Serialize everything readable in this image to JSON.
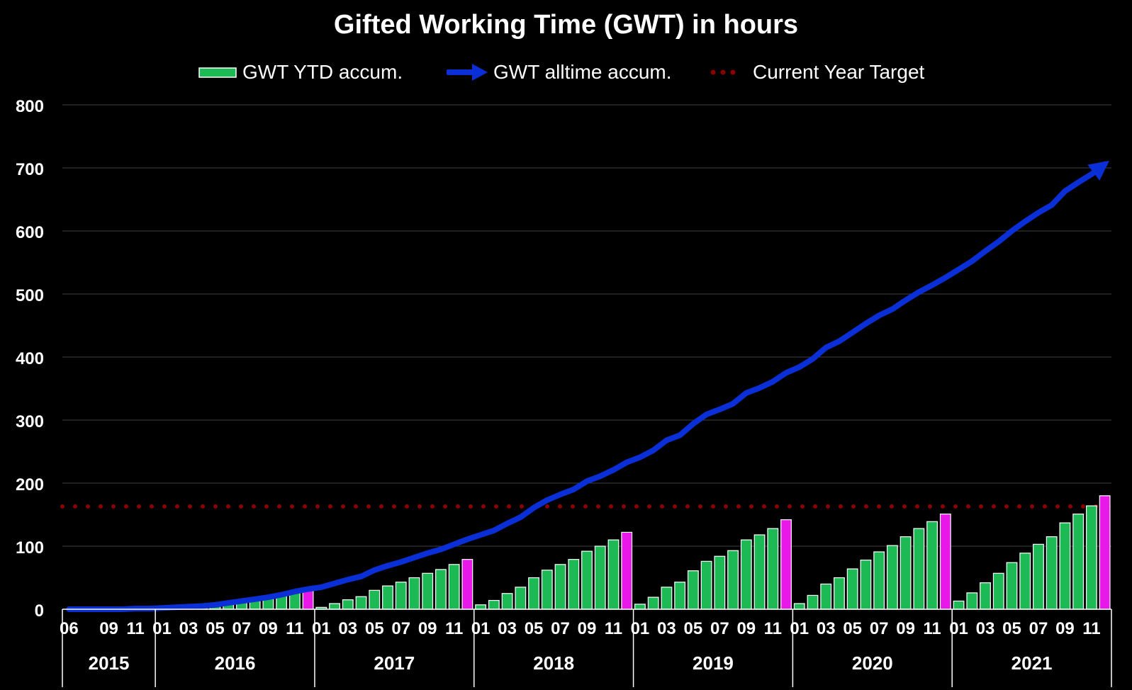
{
  "chart_data": {
    "type": "bar",
    "title": "Gifted Working Time (GWT) in hours",
    "xlabel": "",
    "ylabel": "",
    "ylim": [
      0,
      800
    ],
    "yticks": [
      0,
      100,
      200,
      300,
      400,
      500,
      600,
      700,
      800
    ],
    "grid": true,
    "legend_position": "top",
    "colors": {
      "bar": "#1DB954",
      "bar_year_end": "#E819E8",
      "line": "#0A2FD6",
      "target": "#8B0000",
      "grid": "#404040",
      "background": "#000000"
    },
    "legend": [
      {
        "label": "GWT YTD accum.",
        "marker": "bar"
      },
      {
        "label": "GWT alltime accum.",
        "marker": "arrow-line"
      },
      {
        "label": "Current Year Target",
        "marker": "dotted-line"
      }
    ],
    "years": [
      {
        "label": "2015",
        "months": [
          "06",
          "07",
          "08",
          "09",
          "10",
          "11",
          "12"
        ]
      },
      {
        "label": "2016",
        "months": [
          "01",
          "02",
          "03",
          "04",
          "05",
          "06",
          "07",
          "08",
          "09",
          "10",
          "11",
          "12"
        ]
      },
      {
        "label": "2017",
        "months": [
          "01",
          "02",
          "03",
          "04",
          "05",
          "06",
          "07",
          "08",
          "09",
          "10",
          "11",
          "12"
        ]
      },
      {
        "label": "2018",
        "months": [
          "01",
          "02",
          "03",
          "04",
          "05",
          "06",
          "07",
          "08",
          "09",
          "10",
          "11",
          "12"
        ]
      },
      {
        "label": "2019",
        "months": [
          "01",
          "02",
          "03",
          "04",
          "05",
          "06",
          "07",
          "08",
          "09",
          "10",
          "11",
          "12"
        ]
      },
      {
        "label": "2020",
        "months": [
          "01",
          "02",
          "03",
          "04",
          "05",
          "06",
          "07",
          "08",
          "09",
          "10",
          "11",
          "12"
        ]
      },
      {
        "label": "2021",
        "months": [
          "01",
          "02",
          "03",
          "04",
          "05",
          "06",
          "07",
          "08",
          "09",
          "10",
          "11",
          "12"
        ]
      }
    ],
    "tick_months": [
      "01",
      "03",
      "05",
      "07",
      "09",
      "11"
    ],
    "first_year_tick_months": [
      "06",
      "09",
      "11"
    ],
    "series": [
      {
        "name": "GWT YTD accum.",
        "type": "bar",
        "values": [
          0,
          0,
          0,
          0,
          0,
          1,
          1,
          1,
          2,
          3,
          4,
          6,
          9,
          12,
          15,
          18,
          22,
          27,
          31,
          3,
          9,
          15,
          20,
          30,
          37,
          43,
          50,
          57,
          63,
          71,
          79,
          7,
          14,
          25,
          35,
          50,
          62,
          71,
          79,
          92,
          100,
          110,
          122,
          8,
          19,
          35,
          43,
          61,
          76,
          84,
          93,
          110,
          118,
          128,
          142,
          9,
          22,
          40,
          50,
          64,
          78,
          91,
          101,
          115,
          128,
          139,
          151,
          13,
          26,
          42,
          57,
          74,
          89,
          103,
          115,
          137,
          151,
          164,
          180
        ]
      },
      {
        "name": "GWT alltime accum.",
        "type": "line",
        "values": [
          0,
          0,
          0,
          0,
          0,
          1,
          1,
          2,
          3,
          4,
          5,
          7,
          10,
          13,
          16,
          19,
          23,
          28,
          32,
          35,
          41,
          47,
          52,
          62,
          69,
          75,
          82,
          89,
          95,
          103,
          111,
          118,
          125,
          136,
          146,
          161,
          173,
          182,
          190,
          203,
          211,
          221,
          233,
          241,
          252,
          268,
          276,
          294,
          309,
          317,
          326,
          343,
          351,
          361,
          375,
          384,
          397,
          415,
          425,
          439,
          453,
          466,
          476,
          490,
          503,
          514,
          526,
          539,
          552,
          568,
          583,
          600,
          615,
          629,
          641,
          663,
          677,
          690,
          706
        ]
      },
      {
        "name": "Current Year Target",
        "type": "line",
        "style": "dotted",
        "value": 163
      }
    ]
  }
}
